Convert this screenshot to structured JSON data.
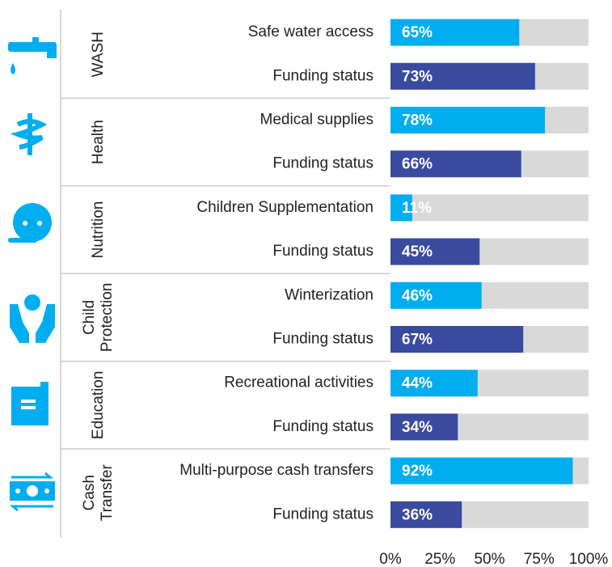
{
  "chart_data": {
    "type": "bar",
    "orientation": "horizontal",
    "colors": [
      "#00aeef",
      "#3a4a9f"
    ],
    "track_color": "#d9d9d9",
    "xlim": [
      0,
      100
    ],
    "xticks": [
      {
        "value": 0,
        "label": "0%"
      },
      {
        "value": 25,
        "label": "25%"
      },
      {
        "value": 50,
        "label": "50%"
      },
      {
        "value": 75,
        "label": "75%"
      },
      {
        "value": 100,
        "label": "100%"
      }
    ],
    "groups": [
      {
        "name": [
          "WASH"
        ],
        "categories": [
          "Safe water access",
          "Funding status"
        ],
        "values": [
          65,
          73
        ],
        "value_labels": [
          "65%",
          "73%"
        ]
      },
      {
        "name": [
          "Health"
        ],
        "categories": [
          "Medical supplies",
          "Funding status"
        ],
        "values": [
          78,
          66
        ],
        "value_labels": [
          "78%",
          "66%"
        ]
      },
      {
        "name": [
          "Nutrition"
        ],
        "categories": [
          "Children Supplementation",
          "Funding status"
        ],
        "values": [
          11,
          45
        ],
        "value_labels": [
          "11%",
          "45%"
        ]
      },
      {
        "name": [
          "Child",
          "Protection"
        ],
        "categories": [
          "Winterization",
          "Funding status"
        ],
        "values": [
          46,
          67
        ],
        "value_labels": [
          "46%",
          "67%"
        ]
      },
      {
        "name": [
          "Education"
        ],
        "categories": [
          "Recreational activities",
          "Funding status"
        ],
        "values": [
          44,
          34
        ],
        "value_labels": [
          "44%",
          "34%"
        ]
      },
      {
        "name": [
          "Cash",
          "Transfer"
        ],
        "categories": [
          "Multi-purpose cash transfers",
          "Funding status"
        ],
        "values": [
          92,
          36
        ],
        "value_labels": [
          "92%",
          "36%"
        ]
      }
    ]
  }
}
